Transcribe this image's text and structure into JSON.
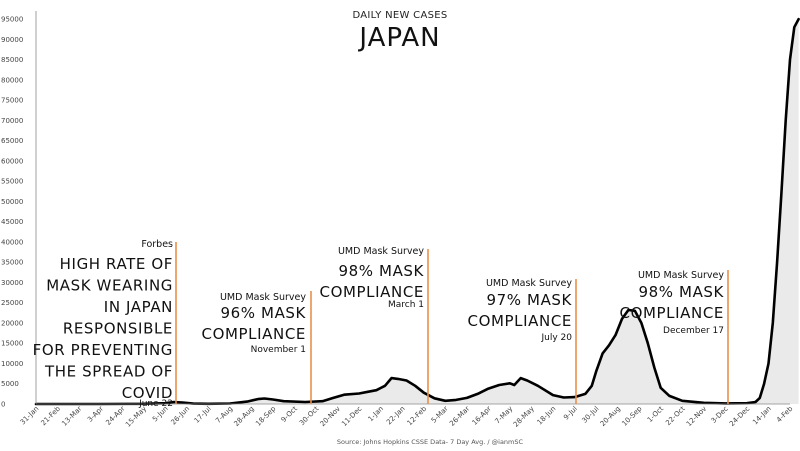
{
  "chart_data": {
    "type": "area",
    "title": "DAILY NEW CASES",
    "subtitle": "JAPAN",
    "source": "Source: Johns Hopkins CSSE Data- 7 Day Avg. / @ianmSC",
    "ylim": [
      0,
      97000
    ],
    "yticks": [
      0,
      5000,
      10000,
      15000,
      20000,
      25000,
      30000,
      35000,
      40000,
      45000,
      50000,
      55000,
      60000,
      65000,
      70000,
      75000,
      80000,
      85000,
      90000,
      95000
    ],
    "xtick_labels": [
      "31-Jan",
      "21-Feb",
      "13-Mar",
      "3-Apr",
      "24-Apr",
      "15-May",
      "5-Jun",
      "26-Jun",
      "17-Jul",
      "7-Aug",
      "28-Aug",
      "18-Sep",
      "9-Oct",
      "30-Oct",
      "20-Nov",
      "11-Dec",
      "1-Jan",
      "22-Jan",
      "12-Feb",
      "5-Mar",
      "26-Mar",
      "16-Apr",
      "7-May",
      "28-May",
      "18-Jun",
      "9-Jul",
      "30-Jul",
      "20-Aug",
      "10-Sep",
      "1-Oct",
      "22-Oct",
      "12-Nov",
      "3-Dec",
      "24-Dec",
      "14-Jan",
      "4-Feb"
    ],
    "grid": false,
    "series": [
      {
        "values": [
          [
            0,
            0
          ],
          [
            3,
            10
          ],
          [
            5,
            40
          ],
          [
            6,
            200
          ],
          [
            6.4,
            500
          ],
          [
            6.8,
            350
          ],
          [
            7.3,
            100
          ],
          [
            8,
            50
          ],
          [
            9,
            120
          ],
          [
            9.8,
            600
          ],
          [
            10.3,
            1200
          ],
          [
            10.6,
            1350
          ],
          [
            11,
            1100
          ],
          [
            11.5,
            700
          ],
          [
            12.5,
            500
          ],
          [
            13.3,
            700
          ],
          [
            13.8,
            1500
          ],
          [
            14.3,
            2300
          ],
          [
            15,
            2600
          ],
          [
            15.4,
            3000
          ],
          [
            15.8,
            3400
          ],
          [
            16.2,
            4500
          ],
          [
            16.5,
            6400
          ],
          [
            16.8,
            6200
          ],
          [
            17.2,
            5800
          ],
          [
            17.6,
            4500
          ],
          [
            18,
            2800
          ],
          [
            18.5,
            1400
          ],
          [
            19,
            800
          ],
          [
            19.5,
            1000
          ],
          [
            20,
            1500
          ],
          [
            20.5,
            2500
          ],
          [
            21,
            3800
          ],
          [
            21.5,
            4700
          ],
          [
            22,
            5100
          ],
          [
            22.2,
            4700
          ],
          [
            22.5,
            6400
          ],
          [
            22.8,
            5800
          ],
          [
            23.3,
            4500
          ],
          [
            24,
            2200
          ],
          [
            24.5,
            1600
          ],
          [
            25,
            1700
          ],
          [
            25.5,
            2500
          ],
          [
            25.8,
            4500
          ],
          [
            26,
            8000
          ],
          [
            26.3,
            12500
          ],
          [
            26.6,
            14500
          ],
          [
            26.9,
            17000
          ],
          [
            27.2,
            21000
          ],
          [
            27.5,
            23200
          ],
          [
            27.8,
            23000
          ],
          [
            28.1,
            20000
          ],
          [
            28.4,
            15000
          ],
          [
            28.7,
            9000
          ],
          [
            29,
            4000
          ],
          [
            29.4,
            2000
          ],
          [
            30,
            800
          ],
          [
            31,
            300
          ],
          [
            32,
            150
          ],
          [
            33,
            200
          ],
          [
            33.4,
            500
          ],
          [
            33.6,
            1500
          ],
          [
            33.8,
            5000
          ],
          [
            34,
            10000
          ],
          [
            34.2,
            20000
          ],
          [
            34.4,
            35000
          ],
          [
            34.6,
            52000
          ],
          [
            34.8,
            70000
          ],
          [
            35,
            85000
          ],
          [
            35.2,
            93000
          ],
          [
            35.4,
            95000
          ]
        ]
      }
    ],
    "annotations": [
      {
        "source": "Forbes",
        "lines": [
          "HIGH RATE OF",
          "MASK WEARING",
          "IN JAPAN",
          "RESPONSIBLE",
          "FOR PREVENTING",
          "THE SPREAD OF",
          "COVID"
        ],
        "date": "June 22"
      },
      {
        "source": "UMD Mask Survey",
        "lines": [
          "96% MASK",
          "COMPLIANCE"
        ],
        "date": "November 1"
      },
      {
        "source": "UMD Mask Survey",
        "lines": [
          "98% MASK",
          "COMPLIANCE"
        ],
        "date": "March 1"
      },
      {
        "source": "UMD Mask Survey",
        "lines": [
          "97% MASK",
          "COMPLIANCE"
        ],
        "date": "July 20"
      },
      {
        "source": "UMD Mask Survey",
        "lines": [
          "98% MASK",
          "COMPLIANCE"
        ],
        "date": "December 17"
      }
    ],
    "colors": {
      "line": "#000000",
      "fill": "#d9d9d9",
      "annotation": "#e8904a",
      "axis": "#888888"
    }
  }
}
